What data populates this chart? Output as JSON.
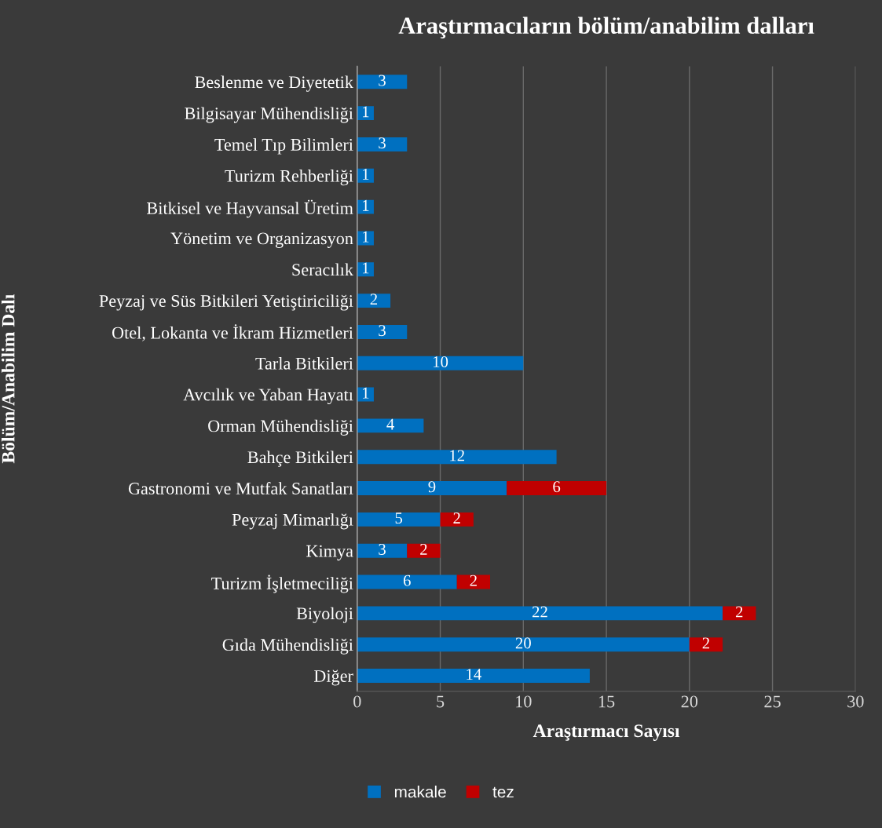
{
  "chart_data": {
    "type": "bar",
    "orientation": "horizontal",
    "stacked": true,
    "title": "Araştırmacıların bölüm/anabilim dalları",
    "xlabel": "Araştırmacı Sayısı",
    "ylabel": "Bölüm/Anabilim Dalı",
    "categories": [
      "Beslenme ve Diyetetik",
      "Bilgisayar Mühendisliği",
      "Temel Tıp Bilimleri",
      "Turizm Rehberliği",
      "Bitkisel ve Hayvansal Üretim",
      "Yönetim ve Organizasyon",
      "Seracılık",
      "Peyzaj ve Süs Bitkileri Yetiştiriciliği",
      "Otel, Lokanta ve İkram Hizmetleri",
      "Tarla Bitkileri",
      "Avcılık ve Yaban Hayatı",
      "Orman Mühendisliği",
      "Bahçe Bitkileri",
      "Gastronomi ve Mutfak Sanatları",
      "Peyzaj Mimarlığı",
      "Kimya",
      "Turizm İşletmeciliği",
      "Biyoloji",
      "Gıda Mühendisliği",
      "Diğer"
    ],
    "series": [
      {
        "name": "makale",
        "color": "#0070c0",
        "values": [
          3,
          1,
          3,
          1,
          1,
          1,
          1,
          2,
          3,
          10,
          1,
          4,
          12,
          9,
          5,
          3,
          6,
          22,
          20,
          14
        ]
      },
      {
        "name": "tez",
        "color": "#c00000",
        "values": [
          null,
          null,
          null,
          null,
          null,
          null,
          null,
          null,
          null,
          null,
          null,
          null,
          null,
          6,
          2,
          2,
          2,
          2,
          2,
          null
        ]
      }
    ],
    "xlim": [
      0,
      30
    ],
    "xticks": [
      0,
      5,
      10,
      15,
      20,
      25,
      30
    ],
    "grid": "x",
    "legend": "bottom",
    "data_labels": true
  }
}
